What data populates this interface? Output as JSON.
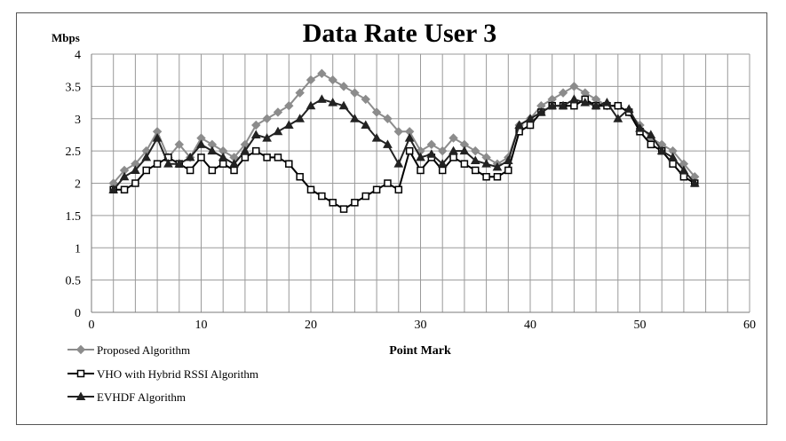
{
  "chart_data": {
    "type": "line",
    "title": "Data Rate User 3",
    "xlabel": "Point Mark",
    "ylabel": "Mbps",
    "xlim": [
      0,
      60
    ],
    "ylim": [
      0,
      4
    ],
    "x_ticks": [
      "0",
      "10",
      "20",
      "30",
      "40",
      "50",
      "60"
    ],
    "y_ticks": [
      "0",
      "0.5",
      "1",
      "1.5",
      "2",
      "2.5",
      "3",
      "3.5",
      "4"
    ],
    "grid": true,
    "legend_position": "bottom-left",
    "x": [
      2,
      3,
      4,
      5,
      6,
      7,
      8,
      9,
      10,
      11,
      12,
      13,
      14,
      15,
      16,
      17,
      18,
      19,
      20,
      21,
      22,
      23,
      24,
      25,
      26,
      27,
      28,
      29,
      30,
      31,
      32,
      33,
      34,
      35,
      36,
      37,
      38,
      39,
      40,
      41,
      42,
      43,
      44,
      45,
      46,
      47,
      48,
      49,
      50,
      51,
      52,
      53,
      54,
      55
    ],
    "series": [
      {
        "name": "Proposed Algorithm",
        "color": "#8c8c8c",
        "marker": "diamond",
        "values": [
          2.0,
          2.2,
          2.3,
          2.5,
          2.8,
          2.4,
          2.6,
          2.4,
          2.7,
          2.6,
          2.5,
          2.4,
          2.6,
          2.9,
          3.0,
          3.1,
          3.2,
          3.4,
          3.6,
          3.7,
          3.6,
          3.5,
          3.4,
          3.3,
          3.1,
          3.0,
          2.8,
          2.8,
          2.5,
          2.6,
          2.5,
          2.7,
          2.6,
          2.5,
          2.4,
          2.3,
          2.4,
          2.9,
          3.0,
          3.2,
          3.3,
          3.4,
          3.5,
          3.4,
          3.3,
          3.2,
          3.2,
          3.1,
          2.9,
          2.7,
          2.6,
          2.5,
          2.3,
          2.1
        ]
      },
      {
        "name": "VHO with Hybrid RSSI Algorithm",
        "color": "#000000",
        "marker": "square",
        "values": [
          1.9,
          1.9,
          2.0,
          2.2,
          2.3,
          2.4,
          2.3,
          2.2,
          2.4,
          2.2,
          2.3,
          2.2,
          2.4,
          2.5,
          2.4,
          2.4,
          2.3,
          2.1,
          1.9,
          1.8,
          1.7,
          1.6,
          1.7,
          1.8,
          1.9,
          2.0,
          1.9,
          2.5,
          2.2,
          2.4,
          2.2,
          2.4,
          2.3,
          2.2,
          2.1,
          2.1,
          2.2,
          2.8,
          2.9,
          3.1,
          3.2,
          3.2,
          3.2,
          3.3,
          3.2,
          3.2,
          3.2,
          3.1,
          2.8,
          2.6,
          2.5,
          2.3,
          2.1,
          2.0
        ]
      },
      {
        "name": "EVHDF Algorithm",
        "color": "#222222",
        "marker": "triangle",
        "values": [
          1.9,
          2.1,
          2.2,
          2.4,
          2.7,
          2.3,
          2.3,
          2.4,
          2.6,
          2.5,
          2.4,
          2.3,
          2.5,
          2.75,
          2.7,
          2.8,
          2.9,
          3.0,
          3.2,
          3.3,
          3.25,
          3.2,
          3.0,
          2.9,
          2.7,
          2.6,
          2.3,
          2.7,
          2.4,
          2.45,
          2.3,
          2.5,
          2.5,
          2.35,
          2.3,
          2.25,
          2.35,
          2.9,
          3.0,
          3.1,
          3.2,
          3.2,
          3.3,
          3.25,
          3.2,
          3.25,
          3.0,
          3.15,
          2.85,
          2.75,
          2.5,
          2.4,
          2.2,
          2.0
        ]
      }
    ]
  }
}
